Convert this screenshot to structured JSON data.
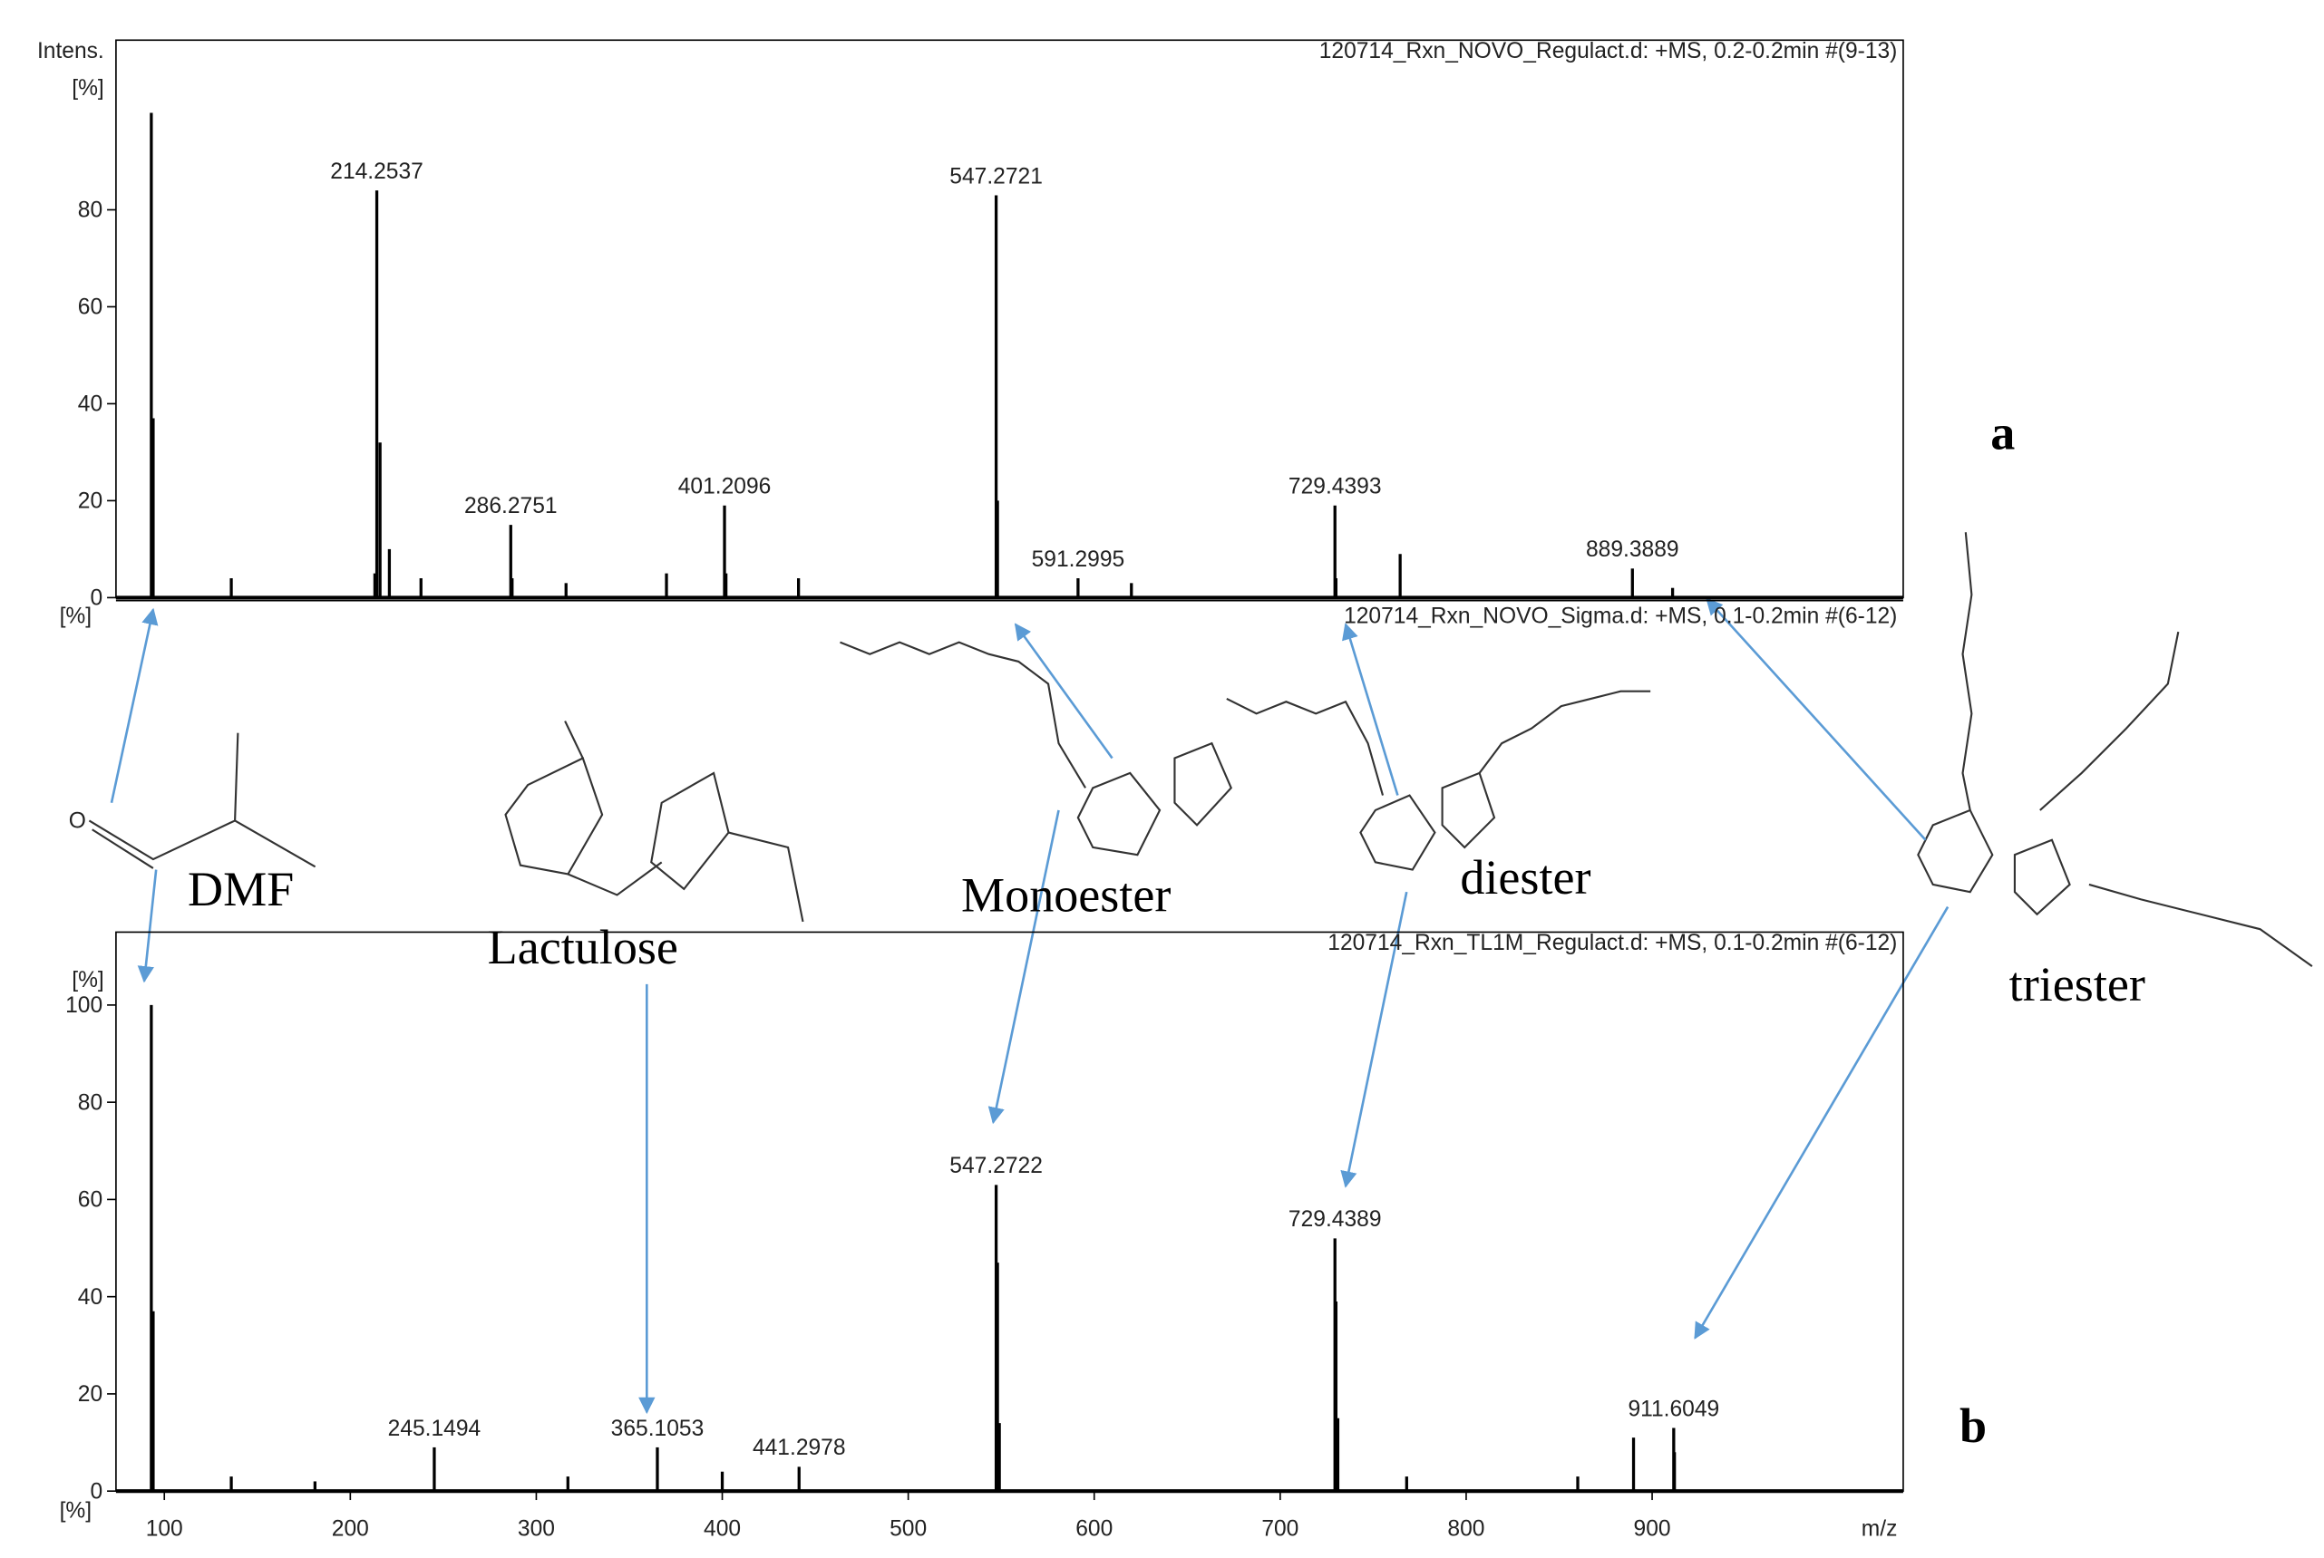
{
  "chart_data": [
    {
      "type": "stem",
      "title": "120714_Rxn_NOVO_Regulact.d: +MS, 0.2-0.2min #(9-13)",
      "y_label": "Intens.",
      "y_unit": "[%]",
      "color": "#000000",
      "x": [
        93,
        94,
        136,
        213.2,
        214.2537,
        216,
        221,
        238,
        286.2751,
        287,
        316,
        370,
        401.2096,
        402,
        441,
        547.2721,
        548,
        591.2995,
        620,
        729.4393,
        730,
        764.5,
        889.3889,
        911
      ],
      "values": [
        100,
        37,
        4,
        5,
        84,
        32,
        10,
        4,
        15,
        4,
        3,
        5,
        19,
        5,
        4,
        83,
        20,
        4,
        3,
        19,
        4,
        9,
        6,
        2
      ],
      "peak_labels": [
        null,
        null,
        null,
        null,
        "214.2537",
        null,
        null,
        null,
        "286.2751",
        null,
        null,
        null,
        "401.2096",
        null,
        null,
        "547.2721",
        null,
        "591.2995",
        null,
        "729.4393",
        null,
        null,
        "889.3889",
        null
      ],
      "xlim": [
        74,
        1035
      ],
      "ylim": [
        0,
        115
      ],
      "yticks": [
        0,
        20,
        40,
        60,
        80
      ]
    },
    {
      "type": "header",
      "title": "120714_Rxn_NOVO_Sigma.d: +MS, 0.1-0.2min #(6-12)",
      "y_unit": "[%]"
    },
    {
      "type": "stem",
      "title": "120714_Rxn_TL1M_Regulact.d: +MS, 0.1-0.2min #(6-12)",
      "y_unit": "[%]",
      "y_unit_lower": "[%]",
      "x_label": "m/z",
      "color": "#000000",
      "x": [
        93,
        94,
        136,
        181,
        245.1494,
        317,
        365.1053,
        400,
        441.2978,
        547.2722,
        548,
        549,
        729.4389,
        730,
        731,
        768,
        860,
        890,
        911.6049,
        912
      ],
      "values": [
        100,
        37,
        3,
        2,
        9,
        3,
        9,
        4,
        5,
        63,
        47,
        14,
        52,
        39,
        15,
        3,
        3,
        11,
        13,
        8
      ],
      "peak_labels": [
        null,
        null,
        null,
        null,
        "245.1494",
        null,
        "365.1053",
        null,
        "441.2978",
        "547.2722",
        null,
        null,
        "729.4389",
        null,
        null,
        null,
        null,
        null,
        "911.6049",
        null
      ],
      "xlim": [
        74,
        1035
      ],
      "ylim": [
        0,
        115
      ],
      "xticks": [
        100,
        200,
        300,
        400,
        500,
        600,
        700,
        800,
        900
      ],
      "yticks": [
        0,
        20,
        40,
        60,
        80,
        100
      ]
    }
  ],
  "structures": [
    "DMF",
    "Lactulose",
    "Monoester",
    "diester",
    "triester"
  ],
  "panels": [
    "a",
    "b"
  ]
}
